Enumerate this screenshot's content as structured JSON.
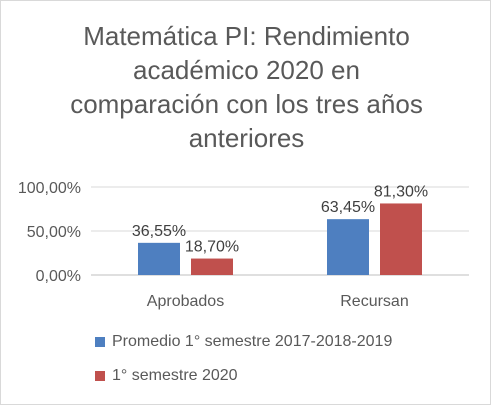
{
  "chart_data": {
    "type": "bar",
    "title_lines": [
      "Matemática PI: Rendimiento",
      "académico 2020 en",
      "comparación con los tres años",
      "anteriores"
    ],
    "categories": [
      "Aprobados",
      "Recursan"
    ],
    "series": [
      {
        "name": "Promedio 1° semestre 2017-2018-2019",
        "values": [
          36.55,
          63.45
        ],
        "labels": [
          "36,55%",
          "63,45%"
        ],
        "color": "#4e7fc0"
      },
      {
        "name": "1° semestre 2020",
        "values": [
          18.7,
          81.3
        ],
        "labels": [
          "18,70%",
          "81,30%"
        ],
        "color": "#c0504d"
      }
    ],
    "yticks": [
      "0,00%",
      "50,00%",
      "100,00%"
    ],
    "ytick_values": [
      0,
      50,
      100
    ],
    "ylim": [
      0,
      100
    ],
    "grid": true,
    "legend_position": "bottom"
  }
}
